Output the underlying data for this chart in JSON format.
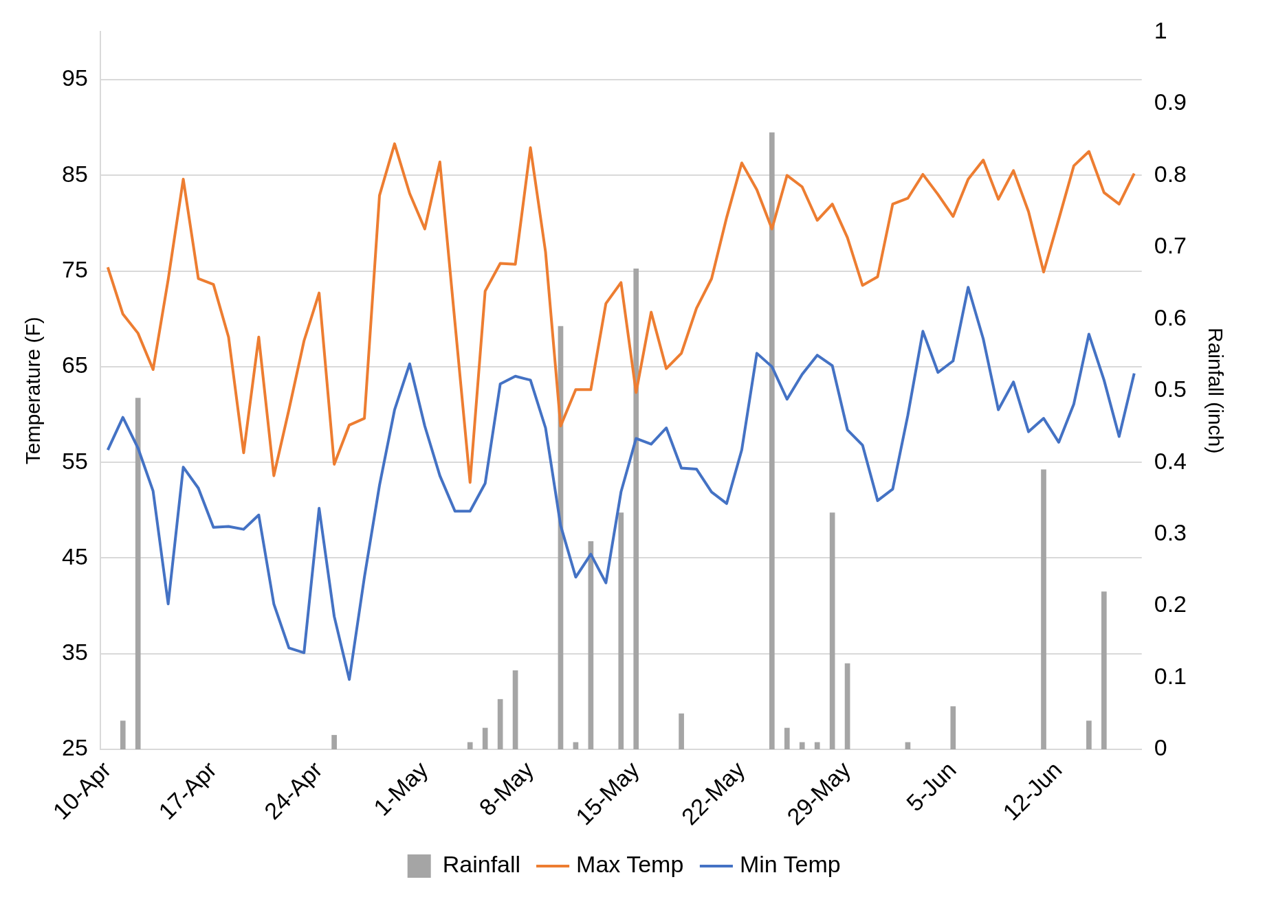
{
  "chart_data": {
    "type": "line",
    "ylabel": "Temperature (F)",
    "y2label": "Rainfall (inch)",
    "categories": [
      "10-Apr",
      null,
      null,
      null,
      null,
      null,
      null,
      "17-Apr",
      null,
      null,
      null,
      null,
      null,
      null,
      "24-Apr",
      null,
      null,
      null,
      null,
      null,
      null,
      "1-May",
      null,
      null,
      null,
      null,
      null,
      null,
      "8-May",
      null,
      null,
      null,
      null,
      null,
      null,
      "15-May",
      null,
      null,
      null,
      null,
      null,
      null,
      "22-May",
      null,
      null,
      null,
      null,
      null,
      null,
      "29-May",
      null,
      null,
      null,
      null,
      null,
      null,
      "5-Jun",
      null,
      null,
      null,
      null,
      null,
      null,
      "12-Jun",
      null,
      null,
      null,
      null,
      null
    ],
    "series": [
      {
        "name": "Rainfall",
        "type": "bar",
        "axis": "y2",
        "color": "#a5a5a5",
        "values": [
          0,
          0.04,
          0.49,
          0,
          0,
          0,
          0,
          0,
          0,
          0,
          0,
          0,
          0,
          0,
          0,
          0.02,
          0,
          0,
          0,
          0,
          0,
          0,
          0,
          0,
          0.01,
          0.03,
          0.07,
          0.11,
          0,
          0,
          0.59,
          0.01,
          0.29,
          0,
          0.33,
          0.67,
          0,
          0,
          0.05,
          0,
          0,
          0,
          0,
          0,
          0.86,
          0.03,
          0.01,
          0.01,
          0.33,
          0.12,
          0,
          0,
          0,
          0.01,
          0,
          0,
          0.06,
          0,
          0,
          0,
          0,
          0,
          0.39,
          0,
          0,
          0.04,
          0.22,
          0,
          0
        ]
      },
      {
        "name": "Max Temp",
        "color": "#ed7d31",
        "values": [
          75.4,
          70.5,
          68.5,
          64.7,
          74.1,
          84.6,
          74.2,
          73.6,
          68.1,
          56.0,
          68.1,
          53.6,
          60.5,
          67.7,
          72.7,
          54.8,
          58.9,
          59.6,
          82.9,
          88.3,
          83.1,
          79.4,
          86.4,
          69.6,
          52.9,
          72.9,
          75.8,
          75.7,
          87.9,
          77.0,
          58.8,
          62.6,
          62.6,
          71.6,
          73.8,
          62.3,
          70.7,
          64.8,
          66.4,
          71.1,
          74.2,
          80.6,
          86.3,
          83.5,
          79.4,
          85.0,
          83.8,
          80.3,
          82.0,
          78.5,
          73.5,
          74.4,
          82.0,
          82.6,
          85.1,
          83.0,
          80.7,
          84.6,
          86.6,
          82.5,
          85.5,
          81.2,
          74.9,
          80.4,
          86.0,
          87.5,
          83.2,
          82.0,
          85.2
        ]
      },
      {
        "name": "Min Temp",
        "color": "#4472c4",
        "values": [
          56.3,
          59.7,
          56.5,
          52.0,
          40.2,
          54.5,
          52.3,
          48.2,
          48.3,
          48.0,
          49.5,
          40.2,
          35.6,
          35.1,
          50.2,
          38.9,
          32.3,
          43.0,
          52.6,
          60.5,
          65.3,
          58.8,
          53.6,
          49.9,
          49.9,
          52.8,
          63.2,
          64.0,
          63.6,
          58.6,
          48.4,
          43.0,
          45.4,
          42.4,
          51.9,
          57.5,
          56.9,
          58.6,
          54.4,
          54.3,
          51.9,
          50.7,
          56.3,
          66.4,
          65.0,
          61.6,
          64.2,
          66.2,
          65.1,
          58.4,
          56.8,
          51.0,
          52.2,
          59.9,
          68.7,
          64.4,
          65.6,
          73.3,
          67.9,
          60.5,
          63.4,
          58.2,
          59.6,
          57.1,
          61.1,
          68.4,
          63.6,
          57.7,
          64.3
        ]
      }
    ],
    "ylim": [
      25,
      100
    ],
    "yticks": [
      25,
      35,
      45,
      55,
      65,
      75,
      85,
      95
    ],
    "y2lim": [
      0,
      1
    ],
    "y2ticks": [
      0,
      0.1,
      0.2,
      0.3,
      0.4,
      0.5,
      0.6,
      0.7,
      0.8,
      0.9,
      1
    ],
    "grid": "y",
    "legend": "bottom"
  }
}
